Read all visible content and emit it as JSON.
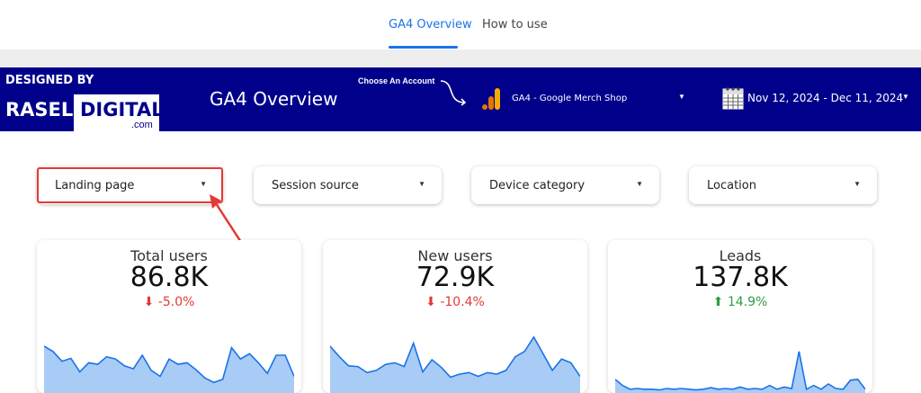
{
  "tabs": [
    {
      "label": "GA4 Overview",
      "active": true
    },
    {
      "label": "How to use",
      "active": false
    }
  ],
  "banner": {
    "designed_by": "DESIGNED BY",
    "logo_rasel": "RASEL",
    "logo_digital": "DIGITAL",
    "logo_com": ".com",
    "title": "GA4 Overview",
    "choose_label": "Choose An Account",
    "account": "GA4 - Google Merch Shop",
    "date_range": "Nov 12, 2024 - Dec 11, 2024"
  },
  "filters": [
    {
      "label": "Landing page"
    },
    {
      "label": "Session source"
    },
    {
      "label": "Device category"
    },
    {
      "label": "Location"
    }
  ],
  "scorecards": [
    {
      "title": "Total users",
      "value": "86.8K",
      "change": "-5.0%",
      "direction": "down",
      "spark": [
        0.62,
        0.55,
        0.42,
        0.46,
        0.28,
        0.4,
        0.38,
        0.48,
        0.45,
        0.36,
        0.32,
        0.5,
        0.3,
        0.22,
        0.45,
        0.38,
        0.4,
        0.31,
        0.2,
        0.14,
        0.18,
        0.6,
        0.45,
        0.52,
        0.4,
        0.26,
        0.5,
        0.5,
        0.22
      ]
    },
    {
      "title": "New users",
      "value": "72.9K",
      "change": "-10.4%",
      "direction": "down",
      "spark": [
        0.62,
        0.48,
        0.36,
        0.35,
        0.27,
        0.3,
        0.38,
        0.4,
        0.35,
        0.66,
        0.28,
        0.44,
        0.34,
        0.21,
        0.25,
        0.27,
        0.22,
        0.27,
        0.25,
        0.3,
        0.48,
        0.55,
        0.74,
        0.52,
        0.3,
        0.45,
        0.4,
        0.22
      ]
    },
    {
      "title": "Leads",
      "value": "137.8K",
      "change": "14.9%",
      "direction": "up",
      "spark": [
        0.18,
        0.1,
        0.05,
        0.06,
        0.05,
        0.05,
        0.04,
        0.06,
        0.05,
        0.06,
        0.05,
        0.04,
        0.05,
        0.07,
        0.05,
        0.06,
        0.05,
        0.08,
        0.05,
        0.06,
        0.05,
        0.1,
        0.05,
        0.08,
        0.06,
        0.55,
        0.05,
        0.1,
        0.05,
        0.12,
        0.06,
        0.05,
        0.17,
        0.18,
        0.05
      ]
    }
  ],
  "colors": {
    "banner": "#00008b",
    "accent": "#1a73e8",
    "negative": "#e53935",
    "positive": "#2e9e43",
    "spark_fill": "#a8ccf5",
    "spark_line": "#1a73e8",
    "highlight": "#e53935"
  },
  "icons": {
    "choose_arrow": "curved-arrow-icon",
    "analytics": "google-analytics-icon",
    "calendar": "calendar-icon",
    "dropdown": "caret-down-icon",
    "down": "arrow-down-icon",
    "up": "arrow-up-icon",
    "annotation": "red-arrow-icon"
  }
}
